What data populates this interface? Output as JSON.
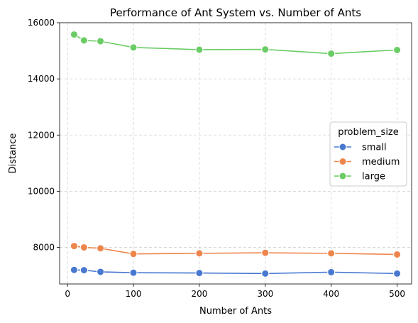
{
  "chart_data": {
    "type": "line",
    "title": "Performance of Ant System vs. Number of Ants",
    "xlabel": "Number of Ants",
    "ylabel": "Distance",
    "x": [
      10,
      25,
      50,
      100,
      200,
      300,
      400,
      500
    ],
    "xlim": [
      -12,
      522
    ],
    "ylim": [
      6700,
      16000
    ],
    "xticks": [
      0,
      100,
      200,
      300,
      400,
      500
    ],
    "yticks": [
      8000,
      10000,
      12000,
      14000,
      16000
    ],
    "grid": true,
    "legend": {
      "title": "problem_size",
      "placement": "right"
    },
    "series": [
      {
        "name": "small",
        "color": "#4878d0",
        "values": [
          7200,
          7190,
          7130,
          7100,
          7090,
          7070,
          7120,
          7070
        ]
      },
      {
        "name": "medium",
        "color": "#ee854a",
        "values": [
          8050,
          8000,
          7970,
          7770,
          7790,
          7810,
          7790,
          7750
        ]
      },
      {
        "name": "large",
        "color": "#6acc64",
        "values": [
          15580,
          15370,
          15340,
          15120,
          15040,
          15050,
          14900,
          15030
        ]
      }
    ]
  }
}
